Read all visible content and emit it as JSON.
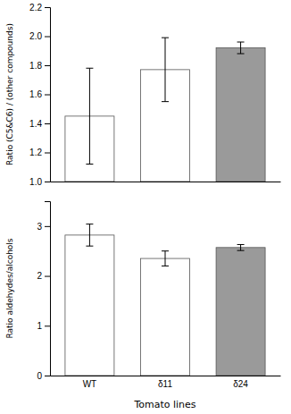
{
  "chart_data": [
    {
      "type": "bar",
      "categories": [
        "WT",
        "δ11",
        "δ24"
      ],
      "values": [
        1.45,
        1.77,
        1.92
      ],
      "errors": [
        0.33,
        0.22,
        0.04
      ],
      "colors": [
        "white",
        "white",
        "#9a9a9a"
      ],
      "ylabel": "Ratio (C5&C6) / (other compounds)",
      "ylim": [
        1.0,
        2.2
      ],
      "yticks": [
        {
          "value": 1.0,
          "label": "1.0"
        },
        1.2,
        1.4,
        1.6,
        1.8,
        {
          "value": 2.0,
          "label": "2.0"
        },
        2.2
      ],
      "tick_labels": "y",
      "grid": false
    },
    {
      "type": "bar",
      "categories": [
        "WT",
        "δ11",
        "δ24"
      ],
      "values": [
        2.82,
        2.35,
        2.57
      ],
      "errors": [
        0.22,
        0.15,
        0.06
      ],
      "colors": [
        "white",
        "white",
        "#9a9a9a"
      ],
      "xlabel": "Tomato lines",
      "ylabel": "Ratio aldehydes/alcohols",
      "ylim": [
        0,
        3.5
      ],
      "yticks": [
        0,
        1,
        2,
        3
      ],
      "grid": false
    }
  ]
}
